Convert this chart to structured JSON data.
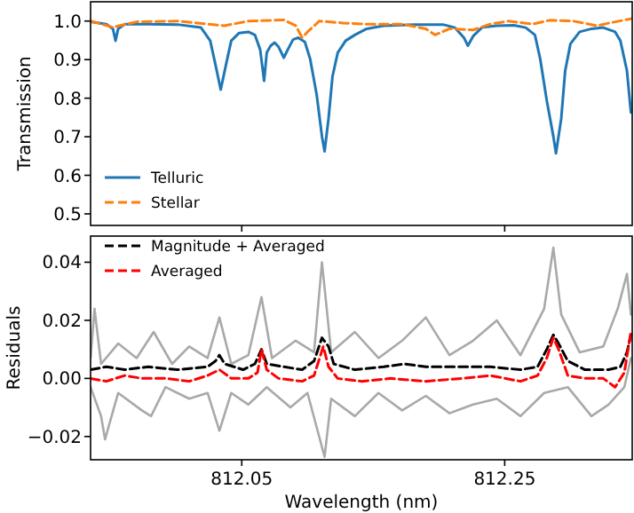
{
  "chart_data": [
    {
      "type": "line",
      "ylabel": "Transmission",
      "xlim": [
        811.935,
        812.347
      ],
      "ylim": [
        0.47,
        1.05
      ],
      "yticks": [
        {
          "value": 0.5,
          "label": "0.5"
        },
        {
          "value": 0.6,
          "label": "0.6"
        },
        {
          "value": 0.7,
          "label": "0.7"
        },
        {
          "value": 0.8,
          "label": "0.8"
        },
        {
          "value": 0.9,
          "label": "0.9"
        },
        {
          "value": 1.0,
          "label": "1.0"
        }
      ],
      "xticks": [
        {
          "value": 812.05,
          "label": null
        },
        {
          "value": 812.25,
          "label": null
        }
      ],
      "tick_labels": "y",
      "legend": "bottom left",
      "grid": false,
      "series": [
        {
          "name": "Telluric",
          "color": "#1f77b4",
          "line_style": "solid",
          "x": [
            811.935,
            811.947,
            811.952,
            811.954,
            811.956,
            811.961,
            811.979,
            812.001,
            812.019,
            812.026,
            812.03,
            812.034,
            812.038,
            812.042,
            812.048,
            812.055,
            812.06,
            812.064,
            812.067,
            812.069,
            812.072,
            812.075,
            812.078,
            812.082,
            812.085,
            812.089,
            812.093,
            812.098,
            812.102,
            812.107,
            812.111,
            812.113,
            812.116,
            812.119,
            812.123,
            812.129,
            812.136,
            812.145,
            812.158,
            812.181,
            812.203,
            812.212,
            812.219,
            812.222,
            812.226,
            812.233,
            812.244,
            812.257,
            812.266,
            812.273,
            812.277,
            812.282,
            812.287,
            812.289,
            812.293,
            812.296,
            812.3,
            812.307,
            812.316,
            812.325,
            812.334,
            812.338,
            812.343,
            812.346
          ],
          "values": [
            0.998,
            0.992,
            0.98,
            0.949,
            0.98,
            0.992,
            0.992,
            0.991,
            0.983,
            0.949,
            0.887,
            0.822,
            0.887,
            0.949,
            0.969,
            0.972,
            0.964,
            0.926,
            0.845,
            0.918,
            0.936,
            0.944,
            0.933,
            0.905,
            0.926,
            0.952,
            0.957,
            0.946,
            0.902,
            0.809,
            0.701,
            0.662,
            0.747,
            0.856,
            0.918,
            0.949,
            0.964,
            0.98,
            0.988,
            0.991,
            0.991,
            0.983,
            0.957,
            0.936,
            0.961,
            0.984,
            0.988,
            0.989,
            0.983,
            0.964,
            0.902,
            0.794,
            0.701,
            0.657,
            0.747,
            0.871,
            0.941,
            0.972,
            0.98,
            0.983,
            0.972,
            0.949,
            0.871,
            0.763
          ]
        },
        {
          "name": "Stellar",
          "color": "#ff7f0e",
          "line_style": "dashed",
          "x": [
            811.935,
            811.952,
            811.97,
            812.001,
            812.024,
            812.037,
            812.055,
            812.082,
            812.091,
            812.096,
            812.1,
            812.109,
            812.127,
            812.145,
            812.172,
            812.19,
            812.197,
            812.208,
            812.226,
            812.239,
            812.253,
            812.271,
            812.284,
            812.302,
            812.32,
            812.334,
            812.346
          ],
          "values": [
            1.0,
            0.984,
            0.998,
            1.0,
            0.992,
            0.988,
            1.0,
            1.003,
            0.988,
            0.957,
            0.972,
            1.0,
            0.995,
            0.992,
            0.992,
            0.98,
            0.964,
            0.98,
            0.977,
            0.992,
            1.0,
            0.992,
            1.002,
            1.0,
            0.988,
            0.998,
            1.006
          ]
        }
      ]
    },
    {
      "type": "line",
      "xlabel": "Wavelength (nm)",
      "ylabel": "Residuals",
      "xlim": [
        811.935,
        812.347
      ],
      "ylim": [
        -0.028,
        0.049
      ],
      "xticks": [
        812.05,
        812.25
      ],
      "yticks": [
        {
          "value": -0.02,
          "label": "−0.02"
        },
        {
          "value": 0,
          "label": "0.00"
        },
        {
          "value": 0.02,
          "label": "0.02"
        },
        {
          "value": 0.04,
          "label": "0.04"
        }
      ],
      "legend": "top left",
      "grid": false,
      "series": [
        {
          "color": "#a9a9a9",
          "line_style": "solid",
          "x": [
            811.935,
            811.938,
            811.943,
            811.956,
            811.97,
            811.983,
            811.997,
            812.01,
            812.024,
            812.033,
            812.042,
            812.055,
            812.065,
            812.073,
            812.091,
            812.105,
            812.111,
            812.118,
            812.136,
            812.154,
            812.172,
            812.19,
            812.208,
            812.226,
            812.244,
            812.262,
            812.28,
            812.287,
            812.293,
            812.307,
            812.325,
            812.336,
            812.343,
            812.346
          ],
          "values": [
            0.007,
            0.024,
            0.005,
            0.012,
            0.007,
            0.016,
            0.005,
            0.011,
            0.007,
            0.021,
            0.005,
            0.008,
            0.028,
            0.007,
            0.013,
            0.009,
            0.04,
            0.009,
            0.016,
            0.007,
            0.013,
            0.021,
            0.008,
            0.013,
            0.02,
            0.008,
            0.024,
            0.045,
            0.022,
            0.009,
            0.011,
            0.024,
            0.036,
            0.022
          ]
        },
        {
          "color": "#a9a9a9",
          "line_style": "solid",
          "x": [
            811.935,
            811.943,
            811.946,
            811.956,
            811.974,
            811.981,
            811.992,
            812.01,
            812.024,
            812.033,
            812.042,
            812.055,
            812.069,
            812.087,
            812.1,
            812.113,
            812.118,
            812.136,
            812.154,
            812.172,
            812.19,
            812.208,
            812.226,
            812.244,
            812.262,
            812.28,
            812.298,
            812.316,
            812.329,
            812.341,
            812.346
          ],
          "values": [
            -0.003,
            -0.013,
            -0.021,
            -0.005,
            -0.011,
            -0.013,
            -0.003,
            -0.007,
            -0.005,
            -0.018,
            -0.005,
            -0.009,
            -0.003,
            -0.01,
            -0.005,
            -0.027,
            -0.007,
            -0.013,
            -0.005,
            -0.011,
            -0.006,
            -0.012,
            -0.009,
            -0.007,
            -0.013,
            -0.005,
            -0.003,
            -0.013,
            -0.009,
            -0.003,
            0.007
          ]
        },
        {
          "name": "Magnitude + Averaged",
          "color": "#000000",
          "line_style": "dashed",
          "x": [
            811.935,
            811.947,
            811.961,
            811.979,
            812.001,
            812.024,
            812.03,
            812.033,
            812.037,
            812.051,
            812.06,
            812.065,
            812.069,
            812.082,
            812.096,
            812.105,
            812.111,
            812.116,
            812.12,
            812.136,
            812.158,
            812.174,
            812.19,
            812.217,
            812.239,
            812.262,
            812.275,
            812.282,
            812.287,
            812.291,
            812.298,
            812.311,
            812.329,
            812.338,
            812.343,
            812.346
          ],
          "values": [
            0.003,
            0.004,
            0.003,
            0.004,
            0.003,
            0.004,
            0.006,
            0.008,
            0.005,
            0.003,
            0.005,
            0.01,
            0.005,
            0.004,
            0.003,
            0.006,
            0.014,
            0.011,
            0.005,
            0.003,
            0.004,
            0.005,
            0.004,
            0.004,
            0.004,
            0.003,
            0.004,
            0.01,
            0.015,
            0.012,
            0.006,
            0.003,
            0.003,
            0.004,
            0.009,
            0.015
          ]
        },
        {
          "name": "Averaged",
          "color": "#ff0000",
          "line_style": "dashed",
          "x": [
            811.935,
            811.947,
            811.961,
            811.974,
            811.992,
            812.01,
            812.024,
            812.033,
            812.042,
            812.055,
            812.062,
            812.065,
            812.069,
            812.078,
            812.096,
            812.105,
            812.112,
            812.116,
            812.123,
            812.141,
            812.163,
            812.19,
            812.217,
            812.239,
            812.262,
            812.275,
            812.282,
            812.287,
            812.291,
            812.298,
            812.311,
            812.325,
            812.334,
            812.341,
            812.346
          ],
          "values": [
            0,
            -0.001,
            0.001,
            0,
            0,
            -0.001,
            0.001,
            0.003,
            0,
            0,
            0.002,
            0.01,
            0.003,
            0,
            -0.001,
            0.001,
            0.011,
            0.004,
            0,
            -0.001,
            0,
            -0.001,
            0,
            0.001,
            -0.001,
            0.001,
            0.007,
            0.014,
            0.01,
            0.001,
            0,
            0,
            -0.003,
            0.002,
            0.016
          ]
        }
      ]
    }
  ]
}
